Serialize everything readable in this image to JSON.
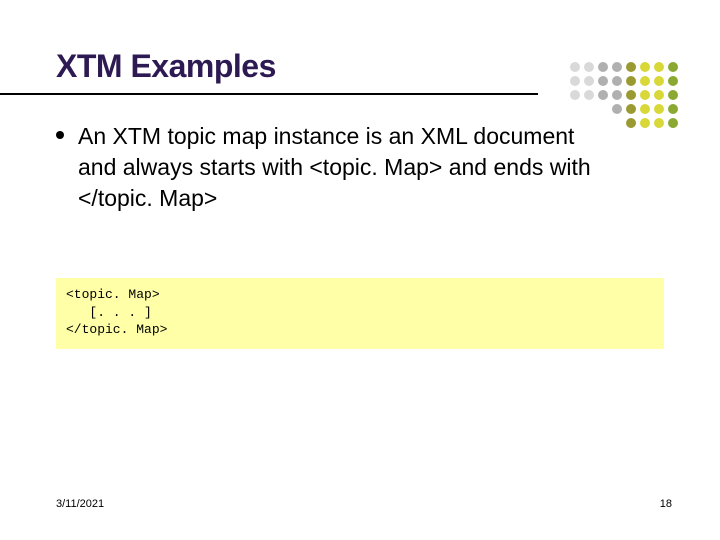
{
  "title": "XTM Examples",
  "bullet": "An XTM topic map instance is an XML document and always starts with <topic. Map> and ends with </topic. Map>",
  "code": "<topic. Map>\n   [. . . ]\n</topic. Map>",
  "footer": {
    "date": "3/11/2021",
    "page": "18"
  },
  "style": {
    "title_color": "#2d1a52",
    "title_fontsize": 32,
    "body_fontsize": 23,
    "code_bg": "#ffffa8",
    "code_fontsize": 13,
    "underline_width": 538,
    "underline_color": "#000000",
    "deco": {
      "dot_size": 10,
      "cols": [
        0,
        14,
        28,
        42,
        56,
        70,
        84,
        98
      ],
      "rows": [
        0,
        14,
        28,
        42,
        56
      ],
      "colors": {
        "light_gray": "#d9d9d9",
        "gray": "#b0b0b0",
        "olive": "#9a9a33",
        "yellow": "#d8d838",
        "green": "#8aa832"
      },
      "pattern": [
        [
          "light_gray",
          "light_gray",
          "gray",
          "gray",
          "olive",
          "yellow",
          "yellow",
          "green"
        ],
        [
          "light_gray",
          "light_gray",
          "gray",
          "gray",
          "olive",
          "yellow",
          "yellow",
          "green"
        ],
        [
          "light_gray",
          "light_gray",
          "gray",
          "gray",
          "olive",
          "yellow",
          "yellow",
          "green"
        ],
        [
          "",
          "",
          "",
          "gray",
          "olive",
          "yellow",
          "yellow",
          "green"
        ],
        [
          "",
          "",
          "",
          "",
          "olive",
          "yellow",
          "yellow",
          "green"
        ]
      ]
    }
  }
}
